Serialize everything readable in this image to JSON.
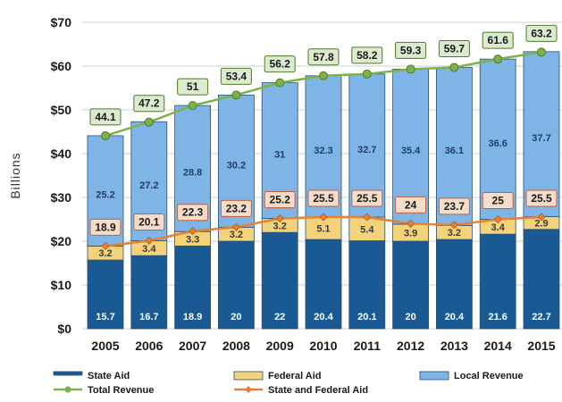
{
  "chart_data": {
    "type": "bar",
    "stacked": true,
    "ylabel": "Billions",
    "ylim": [
      0,
      70
    ],
    "yticks": [
      "$0",
      "$10",
      "$20",
      "$30",
      "$40",
      "$50",
      "$60",
      "$70"
    ],
    "grid": true,
    "categories": [
      "2005",
      "2006",
      "2007",
      "2008",
      "2009",
      "2010",
      "2011",
      "2012",
      "2013",
      "2014",
      "2015"
    ],
    "series": [
      {
        "name": "State Aid",
        "kind": "bar",
        "color": "#1a5a94",
        "values": [
          15.7,
          16.7,
          18.9,
          20.0,
          22.0,
          20.4,
          20.1,
          20.0,
          20.4,
          21.6,
          22.7
        ]
      },
      {
        "name": "Federal Aid",
        "kind": "bar",
        "color": "#f3d27a",
        "values": [
          3.2,
          3.4,
          3.3,
          3.2,
          3.2,
          5.1,
          5.4,
          3.9,
          3.2,
          3.4,
          2.9
        ]
      },
      {
        "name": "Local Revenue",
        "kind": "bar",
        "color": "#7fb4e6",
        "values": [
          25.2,
          27.2,
          28.8,
          30.2,
          31.0,
          32.3,
          32.7,
          35.4,
          36.1,
          36.6,
          37.7
        ]
      },
      {
        "name": "Total Revenue",
        "kind": "line",
        "color": "#7db24a",
        "values": [
          44.1,
          47.2,
          51.0,
          53.4,
          56.2,
          57.8,
          58.2,
          59.3,
          59.7,
          61.6,
          63.2
        ]
      },
      {
        "name": "State and Federal Aid",
        "kind": "line",
        "color": "#e0823a",
        "values": [
          18.9,
          20.1,
          22.3,
          23.2,
          25.2,
          25.5,
          25.5,
          24.0,
          23.7,
          25.0,
          25.5
        ]
      }
    ],
    "legend": [
      "State Aid",
      "Federal Aid",
      "Local Revenue",
      "Total Revenue",
      "State and Federal Aid"
    ],
    "legend_position": "bottom"
  }
}
